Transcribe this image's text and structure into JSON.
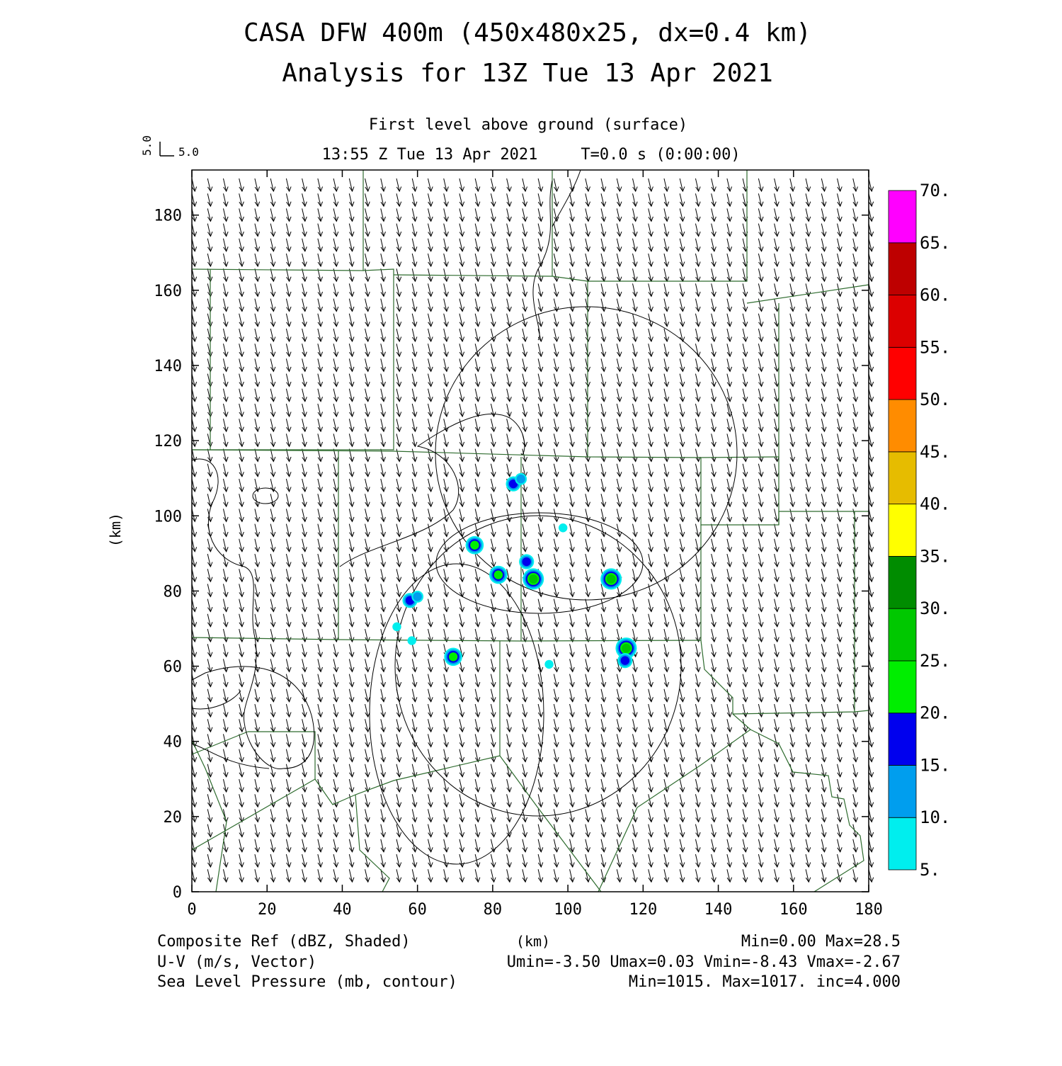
{
  "header": {
    "title_line1": "CASA DFW 400m (450x480x25, dx=0.4 km)",
    "title_line2": "Analysis for 13Z Tue 13 Apr 2021",
    "level": "First level above ground (surface)",
    "valid_time": "13:55 Z Tue 13 Apr 2021",
    "t_label": "T=0.0 s (0:00:00)"
  },
  "vector_key": {
    "u_label": "5.0",
    "v_label": "5.0"
  },
  "axes": {
    "xlabel": "(km)",
    "ylabel": "(km)",
    "xlim": [
      0,
      180
    ],
    "ylim": [
      0,
      192
    ],
    "xticks": [
      "0",
      "20",
      "40",
      "60",
      "80",
      "100",
      "120",
      "140",
      "160",
      "180"
    ],
    "yticks": [
      "0",
      "20",
      "40",
      "60",
      "80",
      "100",
      "120",
      "140",
      "160",
      "180"
    ]
  },
  "colorbar": {
    "labels": [
      "5.",
      "10.",
      "15.",
      "20.",
      "25.",
      "30.",
      "35.",
      "40.",
      "45.",
      "50.",
      "55.",
      "60.",
      "65.",
      "70."
    ],
    "colors": [
      "#00eeee",
      "#009eee",
      "#0000ee",
      "#00ee00",
      "#00c800",
      "#008c00",
      "#ffff00",
      "#e6bc00",
      "#ff8c00",
      "#ff0000",
      "#dc0000",
      "#be0000",
      "#ff00ff"
    ]
  },
  "footer": {
    "field1_name": "Composite Ref (dBZ, Shaded)",
    "field1_stats": "Min=0.00 Max=28.5",
    "field2_name": "U-V (m/s, Vector)",
    "field2_stats": "Umin=-3.50 Umax=0.03 Vmin=-8.43 Vmax=-2.67",
    "field3_name": "Sea Level Pressure (mb, contour)",
    "field3_stats": "Min=1015. Max=1017. inc=4.000",
    "xlabel_center": "(km)"
  },
  "colors": {
    "boundary": "#2e6b2e",
    "contour": "#000000",
    "vector": "#000000"
  },
  "chart_data": {
    "type": "heatmap",
    "cells": [
      {
        "x": 85.5,
        "y": 108.5,
        "dbz": 18
      },
      {
        "x": 87.5,
        "y": 109.8,
        "dbz": 12
      },
      {
        "x": 75.2,
        "y": 92.2,
        "dbz": 20
      },
      {
        "x": 98.7,
        "y": 96.8,
        "dbz": 8
      },
      {
        "x": 81.5,
        "y": 84.3,
        "dbz": 22
      },
      {
        "x": 89.0,
        "y": 87.8,
        "dbz": 17
      },
      {
        "x": 90.8,
        "y": 83.2,
        "dbz": 28.5
      },
      {
        "x": 111.5,
        "y": 83.2,
        "dbz": 26
      },
      {
        "x": 58.0,
        "y": 77.5,
        "dbz": 16
      },
      {
        "x": 60.0,
        "y": 78.5,
        "dbz": 10
      },
      {
        "x": 58.5,
        "y": 66.8,
        "dbz": 9
      },
      {
        "x": 69.5,
        "y": 62.5,
        "dbz": 24
      },
      {
        "x": 115.5,
        "y": 64.8,
        "dbz": 25
      },
      {
        "x": 115.2,
        "y": 61.5,
        "dbz": 17
      },
      {
        "x": 54.5,
        "y": 70.5,
        "dbz": 6
      },
      {
        "x": 95.0,
        "y": 60.5,
        "dbz": 6
      }
    ],
    "wind": {
      "u_range": [
        -3.5,
        0.03
      ],
      "v_range": [
        -8.43,
        -2.67
      ]
    },
    "pressure": {
      "min": 1015,
      "max": 1017,
      "inc": 4.0
    }
  }
}
